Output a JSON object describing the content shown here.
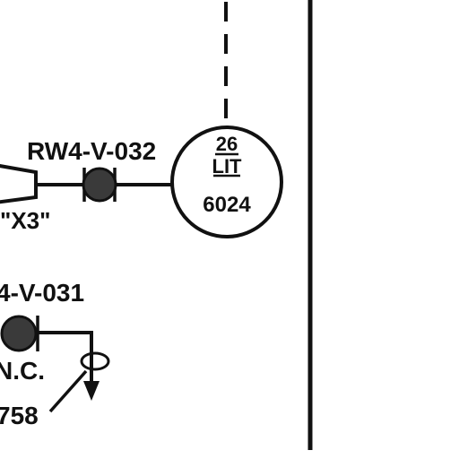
{
  "diagram": {
    "type": "piping-and-instrumentation-fragment",
    "instrument": {
      "loop_number": "26",
      "function": "LIT",
      "tag_number": "6024"
    },
    "valves": [
      {
        "tag": "RW4-V-032"
      },
      {
        "tag": "4-V-031",
        "position": "N.C."
      }
    ],
    "connector_label": "\"X3\"",
    "leader_reference": "758",
    "colors": {
      "line": "#111111",
      "valve_fill": "#3a3a3a",
      "background": "#ffffff"
    }
  }
}
